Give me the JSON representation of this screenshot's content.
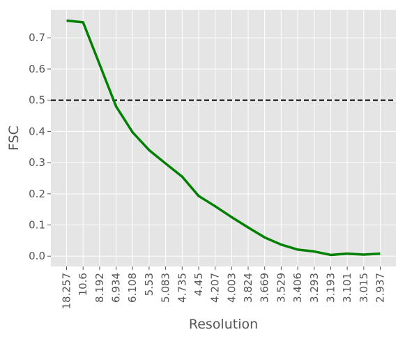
{
  "chart_data": {
    "type": "line",
    "title": "",
    "xlabel": "Resolution",
    "ylabel": "FSC",
    "categories": [
      "18.257",
      "10.6",
      "8.192",
      "6.934",
      "6.108",
      "5.53",
      "5.083",
      "4.735",
      "4.45",
      "4.207",
      "4.003",
      "3.824",
      "3.669",
      "3.529",
      "3.406",
      "3.293",
      "3.193",
      "3.101",
      "3.015",
      "2.937"
    ],
    "series": [
      {
        "color": "#008000",
        "values": [
          0.755,
          0.75,
          0.615,
          0.48,
          0.397,
          0.34,
          0.297,
          0.255,
          0.193,
          0.16,
          0.125,
          0.092,
          0.06,
          0.037,
          0.021,
          0.015,
          0.004,
          0.008,
          0.005,
          0.008
        ]
      }
    ],
    "threshold": {
      "value": 0.5,
      "style": "dashed",
      "color": "#000000"
    },
    "ylim": [
      -0.033,
      0.79
    ],
    "yticks": [
      "0.0",
      "0.1",
      "0.2",
      "0.3",
      "0.4",
      "0.5",
      "0.6",
      "0.7"
    ],
    "grid": true,
    "background": "#e5e5e5"
  }
}
